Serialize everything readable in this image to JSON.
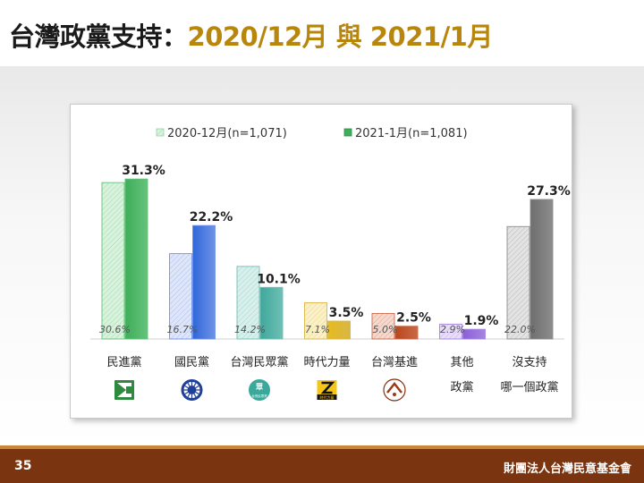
{
  "slide": {
    "title_main": "台灣政黨支持：",
    "title_accent": "2020/12月 與 2021/1月",
    "page_number": "35",
    "organization": "財團法人台灣民意基金會"
  },
  "colors": {
    "title_accent": "#b8860b",
    "footer_bg": "#7a3410",
    "footer_stripe": "#c9873a"
  },
  "chart_data": {
    "type": "bar",
    "series": [
      {
        "name": "2020-12月(n=1,071)",
        "pattern": "hatched-light",
        "values": [
          30.6,
          16.7,
          14.2,
          7.1,
          5.0,
          2.9,
          22.0
        ],
        "labels": [
          "30.6%",
          "16.7%",
          "14.2%",
          "7.1%",
          "5.0%",
          "2.9%",
          "22.0%"
        ]
      },
      {
        "name": "2021-1月(n=1,081)",
        "pattern": "solid",
        "values": [
          31.3,
          22.2,
          10.1,
          3.5,
          2.5,
          1.9,
          27.3
        ],
        "labels": [
          "31.3%",
          "22.2%",
          "10.1%",
          "3.5%",
          "2.5%",
          "1.9%",
          "27.3%"
        ]
      }
    ],
    "categories": [
      {
        "line1": "民進黨",
        "line2": "",
        "icon": "dpp-logo-icon",
        "logo_text": "",
        "light": "#d9f2dd",
        "dark": "#3fae5a",
        "edge": "#64c27b"
      },
      {
        "line1": "國民黨",
        "line2": "",
        "icon": "kmt-logo-icon",
        "logo_text": "",
        "light": "#dfe6fa",
        "dark": "#2f66d9",
        "edge": "#6f93e6"
      },
      {
        "line1": "台灣民眾黨",
        "line2": "",
        "icon": "tpp-logo-icon",
        "logo_text": "台灣民眾黨",
        "light": "#d8efec",
        "dark": "#3fa79a",
        "edge": "#6ec0b5"
      },
      {
        "line1": "時代力量",
        "line2": "",
        "icon": "npp-logo-icon",
        "logo_text": "時代力量",
        "light": "#fbf1c8",
        "dark": "#e6bc1e",
        "edge": "#d8b646"
      },
      {
        "line1": "台灣基進",
        "line2": "",
        "icon": "tsp-logo-icon",
        "logo_text": "",
        "light": "#f5d9cf",
        "dark": "#b9471c",
        "edge": "#c86a48"
      },
      {
        "line1": "其他",
        "line2": "政黨",
        "icon": "",
        "logo_text": "",
        "light": "#e9defa",
        "dark": "#8c5fd8",
        "edge": "#a685e0"
      },
      {
        "line1": "沒支持",
        "line2": "哪一個政黨",
        "icon": "",
        "logo_text": "",
        "light": "#e3e3e3",
        "dark": "#6e6e6e",
        "edge": "#8d8d8d"
      }
    ],
    "legend_position": "top",
    "legend_swatches": {
      "light": "#d9f2dd",
      "dark": "#3fae5a"
    },
    "ylim": [
      0,
      35
    ],
    "grid": false
  }
}
